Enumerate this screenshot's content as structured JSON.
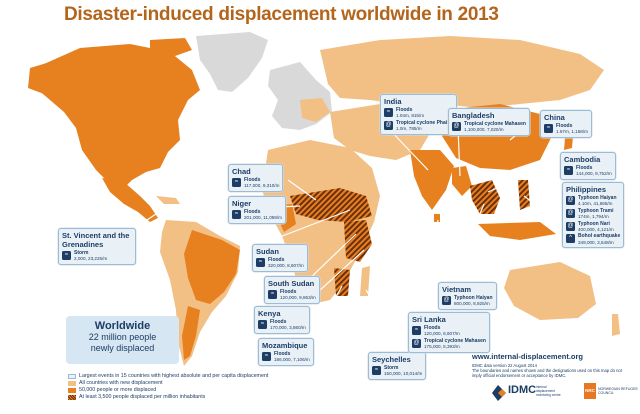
{
  "title": "Disaster-induced displacement worldwide in 2013",
  "colors": {
    "gray": "#d9d9d9",
    "light": "#f2bf85",
    "orange": "#e7801e",
    "hatch": "#6b2f10",
    "callout_border": "#9bbcd4",
    "callout_bg": "#e9f1f7",
    "navy": "#1d3d66",
    "title": "#b3651c"
  },
  "callouts": [
    {
      "id": "india",
      "name": "India",
      "events": [
        {
          "type": "Floods",
          "num": "1.04m, 815/m"
        },
        {
          "type": "Tropical cyclone Phailin",
          "num": "1.0m, 785/m"
        }
      ]
    },
    {
      "id": "bangladesh",
      "name": "Bangladesh",
      "events": [
        {
          "type": "Tropical cyclone Mahasen",
          "num": "1,100,000, 7,020/m"
        }
      ]
    },
    {
      "id": "china",
      "name": "China",
      "events": [
        {
          "type": "Floods",
          "num": "1.67m, 1,158/m"
        }
      ]
    },
    {
      "id": "chad",
      "name": "Chad",
      "events": [
        {
          "type": "Floods",
          "num": "117,000, 9,310/m"
        }
      ]
    },
    {
      "id": "niger",
      "name": "Niger",
      "events": [
        {
          "type": "Floods",
          "num": "201,000, 11,059/m"
        }
      ]
    },
    {
      "id": "cambodia",
      "name": "Cambodia",
      "events": [
        {
          "type": "Floods",
          "num": "144,000, 9,752/m"
        }
      ]
    },
    {
      "id": "philippines",
      "name": "Philippines",
      "events": [
        {
          "type": "Typhoon Haiyan",
          "num": "4.10m, 41,665/m"
        },
        {
          "type": "Typhoon Trami",
          "num": "174m, 1,794/m"
        },
        {
          "type": "Typhoon Nari",
          "num": "400,000, 4,121/m"
        },
        {
          "type": "Bohol earthquake",
          "num": "349,000, 3,548/m"
        }
      ]
    },
    {
      "id": "svg",
      "name": "St. Vincent and the Grenadines",
      "events": [
        {
          "type": "Storm",
          "num": "2,000, 23,225/m"
        }
      ]
    },
    {
      "id": "sudan",
      "name": "Sudan",
      "events": [
        {
          "type": "Floods",
          "num": "320,000, 8,607/m"
        }
      ]
    },
    {
      "id": "southsudan",
      "name": "South Sudan",
      "events": [
        {
          "type": "Floods",
          "num": "120,000, 9,863/m"
        }
      ]
    },
    {
      "id": "kenya",
      "name": "Kenya",
      "events": [
        {
          "type": "Floods",
          "num": "170,000, 3,860/m"
        }
      ]
    },
    {
      "id": "mozambique",
      "name": "Mozambique",
      "events": [
        {
          "type": "Floods",
          "num": "186,000, 7,106/m"
        }
      ]
    },
    {
      "id": "seychelles",
      "name": "Seychelles",
      "events": [
        {
          "type": "Storm",
          "num": "150,000, 10,014/m"
        }
      ]
    },
    {
      "id": "srilanka",
      "name": "Sri Lanka",
      "events": [
        {
          "type": "Floods",
          "num": "120,000, 6,607/m"
        },
        {
          "type": "Tropical cyclone Mahasen",
          "num": "175,000, 5,393/m"
        }
      ]
    },
    {
      "id": "vietnam",
      "name": "Vietnam",
      "events": [
        {
          "type": "Typhoon Haiyan",
          "num": "800,000, 8,925/m"
        }
      ]
    }
  ],
  "worldwide": {
    "title": "Worldwide",
    "line1": "22 million people",
    "line2": "newly displaced"
  },
  "legend": [
    {
      "label": "Largest events in 15 countries with highest absolute and per capita displacement",
      "kind": "callout"
    },
    {
      "label": "All countries with new displacement",
      "kind": "light"
    },
    {
      "label": "50,000 people or more displaced",
      "kind": "orange"
    },
    {
      "label": "At least 3,500 people displaced per million inhabitants",
      "kind": "hatch"
    }
  ],
  "url": "www.internal-displacement.org",
  "source": "IDMC data version 22 August 2014",
  "disclaimer": "The boundaries and names shown and the designations used on this map do not imply official endorsement or acceptance by IDMC.",
  "logos": {
    "idmc": "IDMC",
    "idmc_sub": "internal displacement monitoring centre",
    "nrc": "NRC",
    "nrc_sub": "NORWEGIAN REFUGEE COUNCIL"
  }
}
